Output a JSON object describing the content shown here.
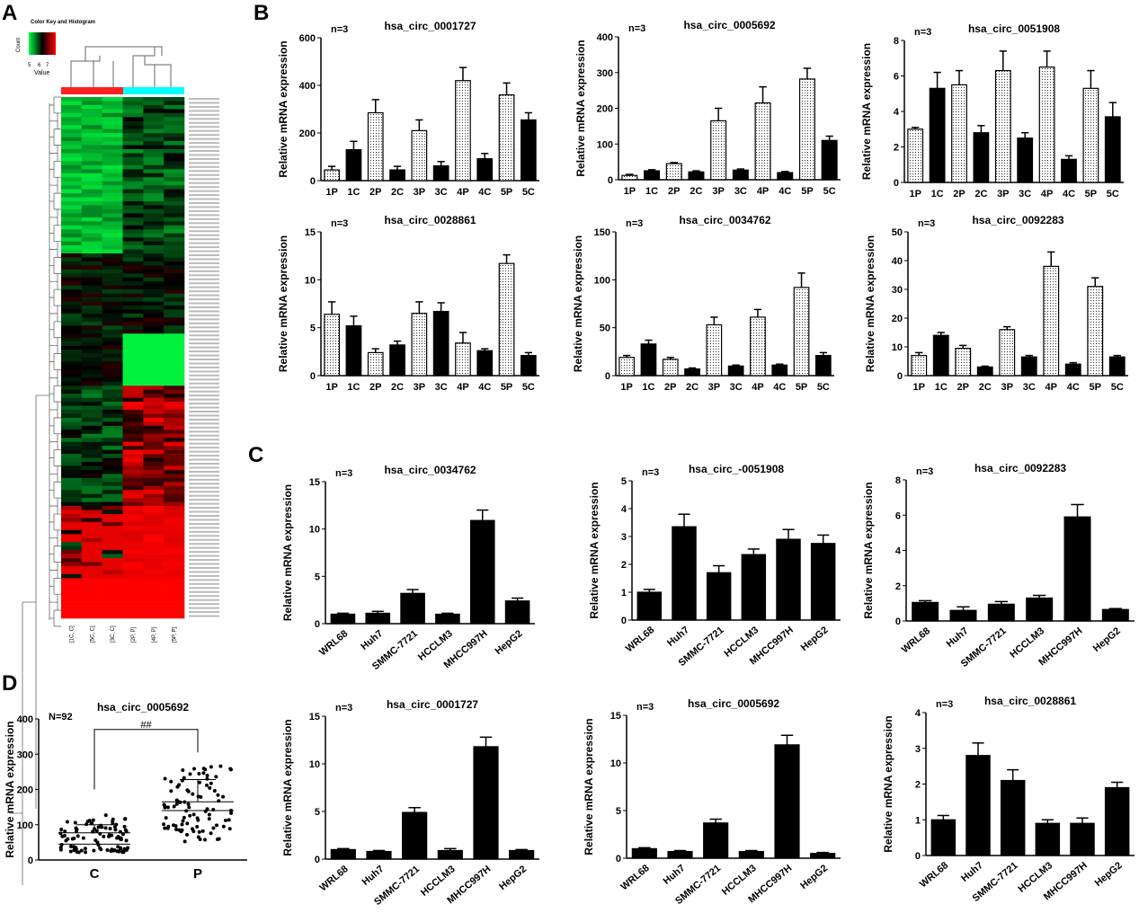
{
  "panel_labels": [
    "A",
    "B",
    "C",
    "D"
  ],
  "heatmap": {
    "color_key_title": "Color Key and Histogram",
    "color_key_ylabel": "Count",
    "color_key_ticks": [
      "5",
      "6",
      "7"
    ],
    "color_key_xlabel": "Value",
    "columns": [
      "[1C, C]",
      "[5C, C]",
      "[3C, C]",
      "[2P, P]",
      "[4P, P]",
      "[5P, P]"
    ],
    "group_colors": {
      "C": "#ff2020",
      "P": "#00ffff"
    },
    "low_color": "#00ff40",
    "mid_color": "#000000",
    "high_color": "#ff0000"
  },
  "chart_data": [
    {
      "type": "bar",
      "panel": "B",
      "title": "hsa_circ_0001727",
      "annotation": "n=3",
      "ylabel": "Relative mRNA expression",
      "ylim": [
        0,
        600
      ],
      "yticks": [
        0,
        200,
        400,
        600
      ],
      "categories": [
        "1P",
        "1C",
        "2P",
        "2C",
        "3P",
        "3C",
        "4P",
        "4C",
        "5P",
        "5C"
      ],
      "values": [
        45,
        130,
        285,
        45,
        210,
        62,
        420,
        92,
        360,
        255
      ],
      "errors": [
        15,
        35,
        55,
        15,
        45,
        18,
        55,
        22,
        50,
        30
      ]
    },
    {
      "type": "bar",
      "panel": "B",
      "title": "hsa_circ_0005692",
      "annotation": "n=3",
      "ylabel": "Relative mRNA expression",
      "ylim": [
        0,
        400
      ],
      "yticks": [
        0,
        100,
        200,
        300,
        400
      ],
      "categories": [
        "1P",
        "1C",
        "2P",
        "2C",
        "3P",
        "3C",
        "4P",
        "4C",
        "5P",
        "5C"
      ],
      "values": [
        12,
        25,
        45,
        22,
        165,
        27,
        215,
        20,
        282,
        110
      ],
      "errors": [
        3,
        3,
        3,
        3,
        35,
        3,
        45,
        3,
        30,
        12
      ]
    },
    {
      "type": "bar",
      "panel": "B",
      "title": "hsa_circ_0051908",
      "annotation": "n=3",
      "ylabel": "Relative mRNA expression",
      "ylim": [
        0,
        8
      ],
      "yticks": [
        0,
        2,
        4,
        6,
        8
      ],
      "categories": [
        "1P",
        "1C",
        "2P",
        "2C",
        "3P",
        "3C",
        "4P",
        "4C",
        "5P",
        "5C"
      ],
      "values": [
        3.0,
        5.3,
        5.5,
        2.8,
        6.3,
        2.5,
        6.5,
        1.3,
        5.3,
        3.7
      ],
      "errors": [
        0.1,
        0.9,
        0.8,
        0.4,
        1.1,
        0.3,
        0.9,
        0.2,
        1.0,
        0.8
      ]
    },
    {
      "type": "bar",
      "panel": "B",
      "title": "hsa_circ_0028861",
      "annotation": "n=3",
      "ylabel": "Relative mRNA expression",
      "ylim": [
        0,
        15
      ],
      "yticks": [
        0,
        5,
        10,
        15
      ],
      "categories": [
        "1P",
        "1C",
        "2P",
        "2C",
        "3P",
        "3C",
        "4P",
        "4C",
        "5P",
        "5C"
      ],
      "values": [
        6.4,
        5.2,
        2.4,
        3.2,
        6.5,
        6.7,
        3.4,
        2.6,
        11.7,
        2.1
      ],
      "errors": [
        1.3,
        1.0,
        0.4,
        0.4,
        1.2,
        0.9,
        1.1,
        0.2,
        0.9,
        0.3
      ]
    },
    {
      "type": "bar",
      "panel": "B",
      "title": "hsa_circ_0034762",
      "annotation": "n=3",
      "ylabel": "Relative mRNA expression",
      "ylim": [
        0,
        150
      ],
      "yticks": [
        0,
        50,
        100,
        150
      ],
      "categories": [
        "1P",
        "1C",
        "2P",
        "2C",
        "3P",
        "3C",
        "4P",
        "4C",
        "5P",
        "5C"
      ],
      "values": [
        19,
        33,
        17,
        7,
        53,
        10,
        61,
        11,
        92,
        21
      ],
      "errors": [
        2,
        4,
        2,
        1,
        8,
        1,
        8,
        1,
        15,
        3
      ]
    },
    {
      "type": "bar",
      "panel": "B",
      "title": "hsa_circ_0092283",
      "annotation": "n=3",
      "ylabel": "Relative mRNA expression",
      "ylim": [
        0,
        50
      ],
      "yticks": [
        0,
        10,
        20,
        30,
        40,
        50
      ],
      "categories": [
        "1P",
        "1C",
        "2P",
        "2C",
        "3P",
        "3C",
        "4P",
        "4C",
        "5P",
        "5C"
      ],
      "values": [
        7,
        14,
        9.5,
        3,
        16,
        6.5,
        38,
        4,
        31,
        6.5
      ],
      "errors": [
        1,
        1,
        1,
        0.3,
        1,
        0.5,
        5,
        0.5,
        3,
        0.5
      ]
    },
    {
      "type": "bar",
      "panel": "C",
      "title": "hsa_circ_0034762",
      "annotation": "n=3",
      "ylabel": "Relative mRNA expression",
      "ylim": [
        0,
        15
      ],
      "yticks": [
        0,
        5,
        10,
        15
      ],
      "categories": [
        "WRL68",
        "Huh7",
        "SMMC-7721",
        "HCCLM3",
        "MHCC997H",
        "HepG2"
      ],
      "values": [
        1.0,
        1.1,
        3.2,
        1.0,
        10.9,
        2.4
      ],
      "errors": [
        0.1,
        0.2,
        0.4,
        0.1,
        1.1,
        0.3
      ]
    },
    {
      "type": "bar",
      "panel": "C",
      "title": "hsa_circ_-0051908",
      "annotation": "n=3",
      "ylabel": "Relative mRNA expression",
      "ylim": [
        0,
        5
      ],
      "yticks": [
        0,
        1,
        2,
        3,
        4,
        5
      ],
      "categories": [
        "WRL68",
        "Huh7",
        "SMMC-7721",
        "HCCLM3",
        "MHCC997H",
        "HepG2"
      ],
      "values": [
        1.0,
        3.35,
        1.7,
        2.35,
        2.9,
        2.75
      ],
      "errors": [
        0.1,
        0.45,
        0.25,
        0.2,
        0.35,
        0.3
      ]
    },
    {
      "type": "bar",
      "panel": "C",
      "title": "hsa_circ_0092283",
      "annotation": "n=3",
      "ylabel": "Relative mRNA expression",
      "ylim": [
        0,
        8
      ],
      "yticks": [
        0,
        2,
        4,
        6,
        8
      ],
      "categories": [
        "WRL68",
        "Huh7",
        "SMMC-7721",
        "HCCLM3",
        "MHCC997H",
        "HepG2"
      ],
      "values": [
        1.05,
        0.6,
        0.95,
        1.3,
        5.9,
        0.65
      ],
      "errors": [
        0.1,
        0.2,
        0.15,
        0.15,
        0.7,
        0.05
      ]
    },
    {
      "type": "bar",
      "panel": "C",
      "title": "hsa_circ_0001727",
      "annotation": "n=3",
      "ylabel": "Relative mRNA expression",
      "ylim": [
        0,
        15
      ],
      "yticks": [
        0,
        5,
        10,
        15
      ],
      "categories": [
        "WRL68",
        "Huh7",
        "SMMC-7721",
        "HCCLM3",
        "MHCC997H",
        "HepG2"
      ],
      "values": [
        1.0,
        0.8,
        4.9,
        0.9,
        11.8,
        0.9
      ],
      "errors": [
        0.1,
        0.1,
        0.5,
        0.2,
        1.0,
        0.1
      ]
    },
    {
      "type": "bar",
      "panel": "C",
      "title": "hsa_circ_0005692",
      "annotation": "n=3",
      "ylabel": "Relative mRNA expression",
      "ylim": [
        0,
        15
      ],
      "yticks": [
        0,
        5,
        10,
        15
      ],
      "categories": [
        "WRL68",
        "Huh7",
        "SMMC-7721",
        "HCCLM3",
        "MHCC997H",
        "HepG2"
      ],
      "values": [
        1.0,
        0.7,
        3.7,
        0.7,
        11.9,
        0.5
      ],
      "errors": [
        0.1,
        0.1,
        0.4,
        0.1,
        1.0,
        0.1
      ]
    },
    {
      "type": "bar",
      "panel": "C",
      "title": "hsa_circ_0028861",
      "annotation": "n=3",
      "ylabel": "Relative mRNA expression",
      "ylim": [
        0,
        4
      ],
      "yticks": [
        0,
        1,
        2,
        3,
        4
      ],
      "categories": [
        "WRL68",
        "Huh7",
        "SMMC-7721",
        "HCCLM3",
        "MHCC997H",
        "HepG2"
      ],
      "values": [
        1.0,
        2.8,
        2.1,
        0.9,
        0.9,
        1.9
      ],
      "errors": [
        0.12,
        0.35,
        0.3,
        0.1,
        0.15,
        0.15
      ]
    },
    {
      "type": "scatter",
      "panel": "D",
      "title": "hsa_circ_0005692",
      "annotation": "N=92",
      "significance": "##",
      "ylabel": "Relative mRNA expression",
      "ylim": [
        0,
        400
      ],
      "yticks": [
        0,
        100,
        200,
        300,
        400
      ],
      "categories": [
        "C",
        "P"
      ],
      "groups": [
        {
          "name": "C",
          "n": 92,
          "range": [
            22,
            142
          ],
          "mean_band": [
            45,
            77
          ],
          "upper_bar": 100
        },
        {
          "name": "P",
          "n": 92,
          "range": [
            52,
            298
          ],
          "mean_band": [
            140,
            165
          ],
          "upper_bar": 228
        }
      ]
    }
  ]
}
